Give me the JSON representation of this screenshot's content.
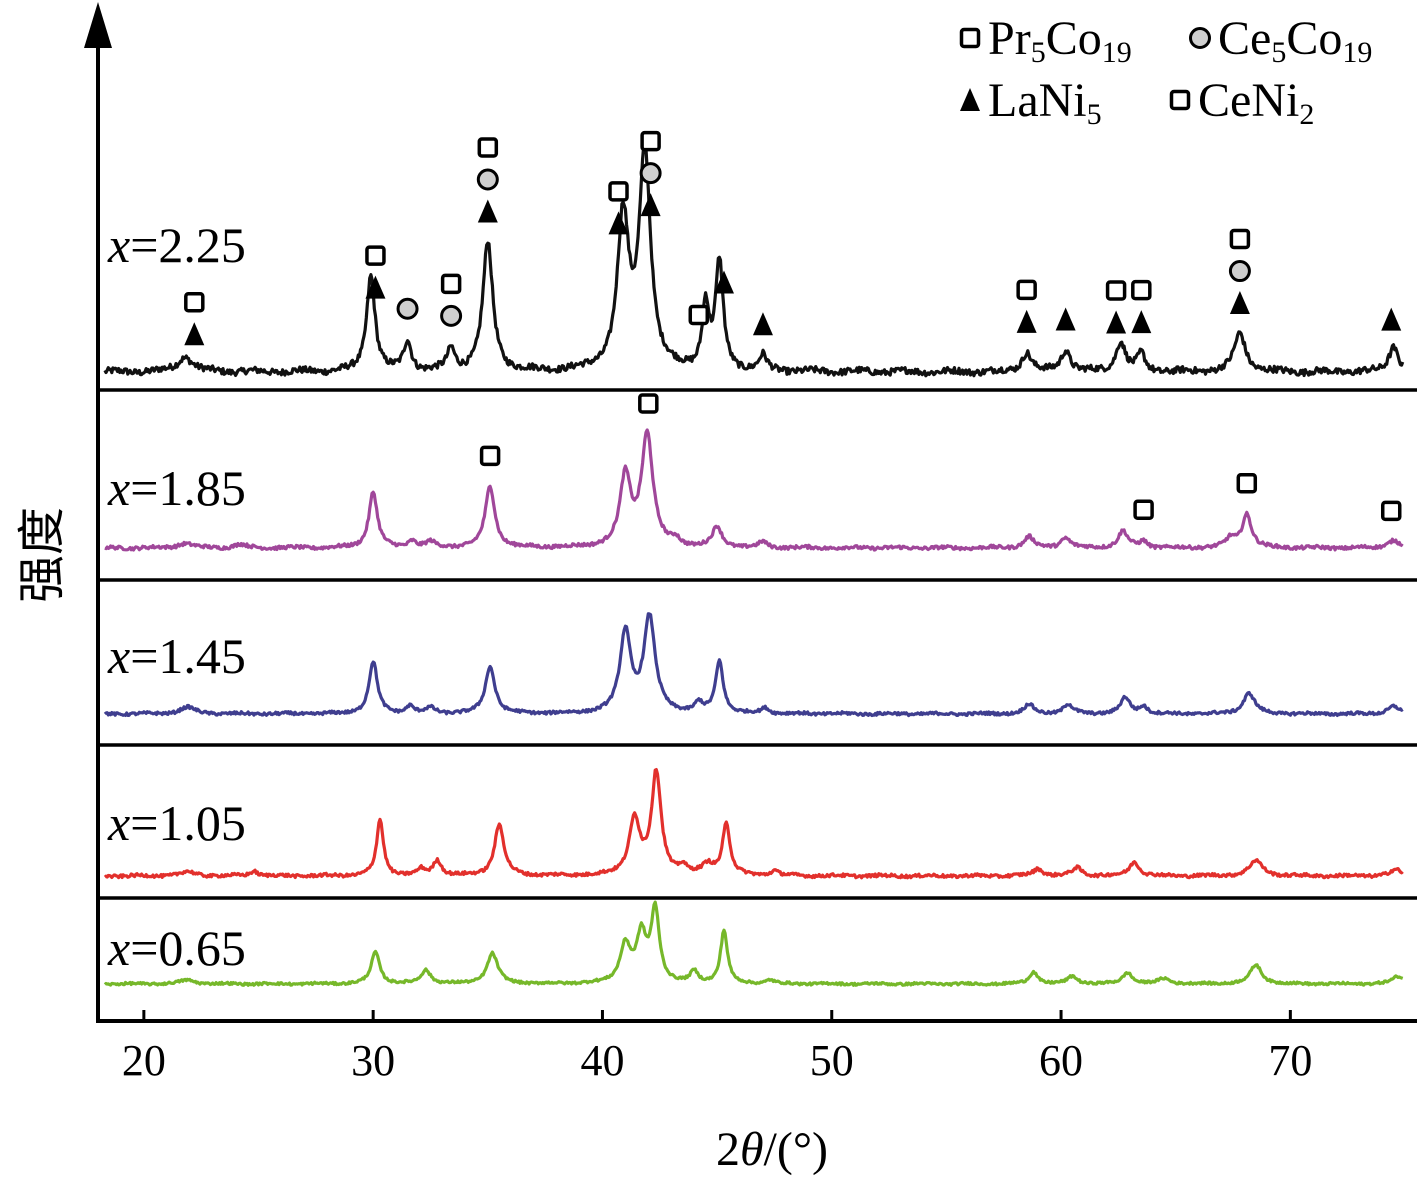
{
  "chart_data": {
    "type": "line",
    "title": "",
    "xlabel_prefix": "2",
    "xlabel_symbol": "θ",
    "xlabel_suffix": "/(°)",
    "ylabel": "强度",
    "xlim": [
      18,
      75
    ],
    "xticks": [
      20,
      30,
      40,
      50,
      60,
      70
    ],
    "legend": {
      "position": "top-right",
      "entries": [
        {
          "marker": "square",
          "base": "Pr",
          "sub1": "5",
          "mid": "Co",
          "sub2": "19"
        },
        {
          "marker": "circle",
          "base": "Ce",
          "sub1": "5",
          "mid": "Co",
          "sub2": "19"
        },
        {
          "marker": "triangle",
          "base": "LaNi",
          "sub1": "5",
          "mid": "",
          "sub2": ""
        },
        {
          "marker": "square",
          "base": "CeNi",
          "sub1": "2",
          "mid": "",
          "sub2": ""
        }
      ]
    },
    "series": [
      {
        "label_var": "x",
        "label_val": "=2.25",
        "color": "#111111",
        "peaks": [
          [
            21.8,
            0.07,
            0.4
          ],
          [
            29.9,
            0.45,
            0.22
          ],
          [
            31.5,
            0.14,
            0.2
          ],
          [
            33.4,
            0.1,
            0.2
          ],
          [
            35.0,
            0.6,
            0.26
          ],
          [
            40.9,
            0.7,
            0.3
          ],
          [
            41.85,
            1.0,
            0.3
          ],
          [
            44.5,
            0.3,
            0.18
          ],
          [
            45.1,
            0.5,
            0.2
          ],
          [
            47.0,
            0.07,
            0.2
          ],
          [
            58.5,
            0.09,
            0.25
          ],
          [
            60.2,
            0.1,
            0.25
          ],
          [
            62.6,
            0.14,
            0.25
          ],
          [
            63.5,
            0.08,
            0.2
          ],
          [
            67.8,
            0.18,
            0.3
          ],
          [
            74.5,
            0.12,
            0.25
          ]
        ],
        "markers": [
          {
            "x": 22.2,
            "types": [
              "triangle",
              "square"
            ]
          },
          {
            "x": 30.1,
            "types": [
              "triangle",
              "square"
            ]
          },
          {
            "x": 31.5,
            "types": [
              "circle"
            ]
          },
          {
            "x": 33.4,
            "types": [
              "circle",
              "square"
            ]
          },
          {
            "x": 35.0,
            "types": [
              "triangle",
              "circle",
              "square"
            ]
          },
          {
            "x": 40.7,
            "types": [
              "triangle",
              "square"
            ]
          },
          {
            "x": 42.1,
            "types": [
              "triangle",
              "circle",
              "square"
            ]
          },
          {
            "x": 44.2,
            "types": [
              "square"
            ]
          },
          {
            "x": 45.3,
            "types": [
              "triangle"
            ]
          },
          {
            "x": 47.0,
            "types": [
              "triangle"
            ]
          },
          {
            "x": 58.5,
            "types": [
              "triangle",
              "square"
            ]
          },
          {
            "x": 60.2,
            "types": [
              "triangle"
            ]
          },
          {
            "x": 62.4,
            "types": [
              "triangle",
              "square"
            ]
          },
          {
            "x": 63.5,
            "types": [
              "triangle",
              "square"
            ]
          },
          {
            "x": 67.8,
            "types": [
              "triangle",
              "circle",
              "square"
            ]
          },
          {
            "x": 74.4,
            "types": [
              "triangle"
            ]
          }
        ]
      },
      {
        "label_var": "x",
        "label_val": "=1.85",
        "color": "#a0479a",
        "peaks": [
          [
            21.8,
            0.04,
            0.4
          ],
          [
            24.2,
            0.03,
            0.3
          ],
          [
            30.0,
            0.5,
            0.22
          ],
          [
            31.7,
            0.06,
            0.2
          ],
          [
            32.5,
            0.05,
            0.25
          ],
          [
            35.1,
            0.55,
            0.25
          ],
          [
            41.0,
            0.62,
            0.28
          ],
          [
            41.95,
            1.0,
            0.3
          ],
          [
            43.2,
            0.06,
            0.2
          ],
          [
            45.0,
            0.18,
            0.25
          ],
          [
            47.0,
            0.05,
            0.2
          ],
          [
            58.6,
            0.1,
            0.25
          ],
          [
            60.2,
            0.09,
            0.25
          ],
          [
            62.7,
            0.15,
            0.25
          ],
          [
            63.6,
            0.06,
            0.2
          ],
          [
            67.4,
            0.08,
            0.25
          ],
          [
            68.1,
            0.3,
            0.25
          ],
          [
            74.5,
            0.07,
            0.3
          ]
        ],
        "markers": [
          {
            "x": 35.1,
            "types": [
              "square"
            ]
          },
          {
            "x": 42.0,
            "types": [
              "square"
            ]
          },
          {
            "x": 63.6,
            "types": [
              "square"
            ]
          },
          {
            "x": 68.1,
            "types": [
              "square"
            ]
          },
          {
            "x": 74.4,
            "types": [
              "square"
            ]
          }
        ]
      },
      {
        "label_var": "x",
        "label_val": "=1.45",
        "color": "#3f3e8f",
        "peaks": [
          [
            21.9,
            0.07,
            0.4
          ],
          [
            30.0,
            0.55,
            0.22
          ],
          [
            31.6,
            0.08,
            0.2
          ],
          [
            32.5,
            0.06,
            0.25
          ],
          [
            35.1,
            0.5,
            0.25
          ],
          [
            41.0,
            0.85,
            0.28
          ],
          [
            42.05,
            1.0,
            0.3
          ],
          [
            44.2,
            0.1,
            0.2
          ],
          [
            45.1,
            0.55,
            0.2
          ],
          [
            47.1,
            0.06,
            0.2
          ],
          [
            58.6,
            0.1,
            0.25
          ],
          [
            60.3,
            0.1,
            0.25
          ],
          [
            62.8,
            0.17,
            0.25
          ],
          [
            63.6,
            0.08,
            0.2
          ],
          [
            68.2,
            0.22,
            0.3
          ],
          [
            74.5,
            0.08,
            0.3
          ]
        ],
        "markers": []
      },
      {
        "label_var": "x",
        "label_val": "=1.05",
        "color": "#e2302c",
        "peaks": [
          [
            21.9,
            0.04,
            0.4
          ],
          [
            24.8,
            0.05,
            0.2
          ],
          [
            30.3,
            0.55,
            0.18
          ],
          [
            32.1,
            0.06,
            0.2
          ],
          [
            32.8,
            0.15,
            0.22
          ],
          [
            35.5,
            0.5,
            0.25
          ],
          [
            41.4,
            0.55,
            0.28
          ],
          [
            42.35,
            1.0,
            0.25
          ],
          [
            43.5,
            0.08,
            0.2
          ],
          [
            44.6,
            0.1,
            0.3
          ],
          [
            45.4,
            0.5,
            0.2
          ],
          [
            47.5,
            0.05,
            0.2
          ],
          [
            59.0,
            0.07,
            0.25
          ],
          [
            60.7,
            0.08,
            0.25
          ],
          [
            63.2,
            0.14,
            0.25
          ],
          [
            68.5,
            0.15,
            0.35
          ],
          [
            74.6,
            0.06,
            0.3
          ]
        ],
        "markers": []
      },
      {
        "label_var": "x",
        "label_val": "=0.65",
        "color": "#76b82a",
        "peaks": [
          [
            21.9,
            0.05,
            0.4
          ],
          [
            30.1,
            0.42,
            0.22
          ],
          [
            32.3,
            0.18,
            0.25
          ],
          [
            35.2,
            0.4,
            0.28
          ],
          [
            41.0,
            0.5,
            0.28
          ],
          [
            41.7,
            0.6,
            0.25
          ],
          [
            42.3,
            0.95,
            0.22
          ],
          [
            44.0,
            0.15,
            0.2
          ],
          [
            45.3,
            0.7,
            0.18
          ],
          [
            47.3,
            0.05,
            0.2
          ],
          [
            58.8,
            0.16,
            0.22
          ],
          [
            60.5,
            0.1,
            0.25
          ],
          [
            62.9,
            0.15,
            0.25
          ],
          [
            64.5,
            0.07,
            0.3
          ],
          [
            68.5,
            0.25,
            0.3
          ],
          [
            74.7,
            0.1,
            0.3
          ]
        ],
        "markers": []
      }
    ]
  }
}
